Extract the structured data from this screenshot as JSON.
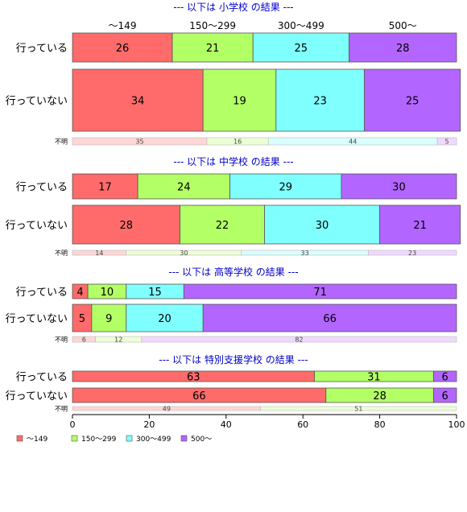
{
  "chart_data": {
    "type": "bar",
    "orientation": "horizontal",
    "stacked": true,
    "normalized_percent": true,
    "xlim": [
      0,
      100
    ],
    "x_ticks": [
      "0",
      "20",
      "40",
      "60",
      "80",
      "100"
    ],
    "grid": false,
    "legend_position": "bottom-left",
    "series": [
      {
        "name": "～149",
        "color": "#ff6b6b",
        "light_color": "#ffd6d6"
      },
      {
        "name": "150～299",
        "color": "#b3ff66",
        "light_color": "#ecffd4"
      },
      {
        "name": "300～499",
        "color": "#80ffff",
        "light_color": "#d9ffff"
      },
      {
        "name": "500～",
        "color": "#b366ff",
        "light_color": "#f0d9ff"
      }
    ],
    "top_category_labels": [
      "～149",
      "150～299",
      "300～499",
      "500～"
    ],
    "panels": [
      {
        "title": "--- 以下は 小学校 の結果 ---",
        "rows": [
          {
            "label": "行っている",
            "values": [
              26,
              21,
              25,
              28
            ],
            "kind": "main"
          },
          {
            "label": "行っていない",
            "values": [
              34,
              19,
              23,
              25
            ],
            "kind": "main"
          },
          {
            "label": "不明",
            "values": [
              35,
              16,
              44,
              5
            ],
            "kind": "small"
          }
        ]
      },
      {
        "title": "--- 以下は 中学校 の結果 ---",
        "rows": [
          {
            "label": "行っている",
            "values": [
              17,
              24,
              29,
              30
            ],
            "kind": "main"
          },
          {
            "label": "行っていない",
            "values": [
              28,
              22,
              30,
              21
            ],
            "kind": "main"
          },
          {
            "label": "不明",
            "values": [
              14,
              30,
              33,
              23
            ],
            "kind": "small"
          }
        ]
      },
      {
        "title": "--- 以下は 高等学校 の結果 ---",
        "rows": [
          {
            "label": "行っている",
            "values": [
              4,
              10,
              15,
              71
            ],
            "kind": "main"
          },
          {
            "label": "行っていない",
            "values": [
              5,
              9,
              20,
              66
            ],
            "kind": "main"
          },
          {
            "label": "不明",
            "values": [
              6,
              12,
              0,
              82
            ],
            "kind": "small"
          }
        ]
      },
      {
        "title": "--- 以下は 特別支援学校 の結果 ---",
        "rows": [
          {
            "label": "行っている",
            "values": [
              63,
              31,
              0,
              6
            ],
            "kind": "main"
          },
          {
            "label": "行っていない",
            "values": [
              66,
              28,
              0,
              6
            ],
            "kind": "main"
          },
          {
            "label": "不明",
            "values": [
              49,
              51,
              0,
              0
            ],
            "kind": "small"
          }
        ]
      }
    ]
  }
}
